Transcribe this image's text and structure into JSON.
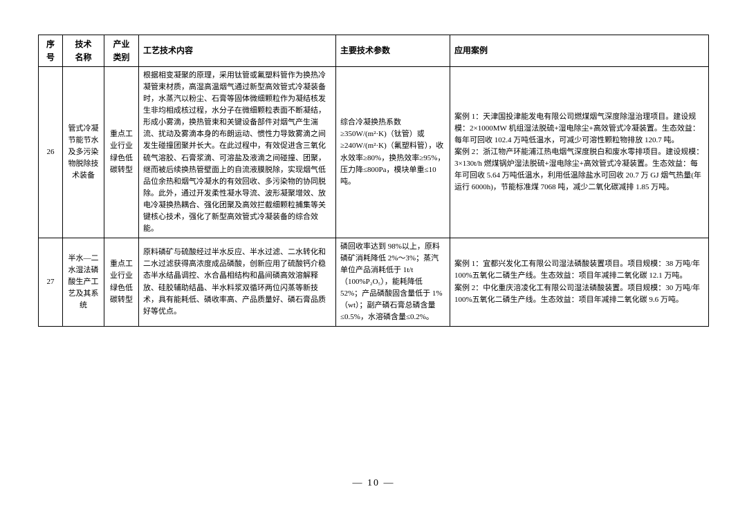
{
  "headers": {
    "num": "序号",
    "tech": "技术\n名称",
    "ind": "产业\n类别",
    "proc": "工艺技术内容",
    "param": "主要技术参数",
    "case": "应用案例"
  },
  "rows": [
    {
      "num": "26",
      "tech": "管式冷凝节能节水及多污染物脱除技术装备",
      "ind": "重点工业行业绿色低碳转型",
      "proc": "根据相变凝聚的原理，采用钛管或氟塑料管作为换热冷凝管束材质，高湿高温烟气通过新型高效管式冷凝装备时，水蒸汽以粉尘、石膏等固体微细颗粒作为凝结核发生非均相成核过程，水分子在微细颗粒表面不断凝结，形成小雾滴，换热管束和关键设备部件对烟气产生湍流、扰动及雾滴本身的布朗运动、惯性力导致雾滴之间发生碰撞团聚并长大。在此过程中，有效促进含三氧化硫气溶胶、石膏浆滴、可溶盐及液滴之间碰撞、团聚，继而被后续换热管壁面上的自流液膜脱除，实现烟气低品位余热和烟气冷凝水的有效回收、多污染物的协同脱除。此外，通过开发柔性凝水导流、波形凝聚增效、放电冷凝换热耦合、强化团聚及高效拦截细颗粒捕集等关键核心技术，强化了新型高效管式冷凝装备的综合效能。",
      "param": "综合冷凝换热系数≥350W/(m²·K)（钛管）或≥240W/(m²·K)（氟塑料管），收水效率≥80%，换热效率≥95%，压力降≤800Pa，模块单重≤10 吨。",
      "case": "案例 1：天津国投津能发电有限公司燃煤烟气深度除湿治理项目。建设规模：2×1000MW 机组湿法脱硫+湿电除尘+高效管式冷凝装置。生态效益：每年可回收 102.4 万吨低温水，可减少可溶性颗粒物排放 120.7 吨。\n案例 2：浙江物产环能浦江热电烟气深度脱白和废水零排项目。建设规模：3×130t/h 燃煤锅炉湿法脱硫+湿电除尘+高效管式冷凝装置。生态效益：每年可回收 5.64 万吨低温水，利用低温除盐水可回收 20.7 万 GJ 烟气热量(年运行 6000h)，节能标准煤 7068 吨，减少二氧化碳减排 1.85 万吨。"
    },
    {
      "num": "27",
      "tech": "半水—二水湿法磷酸生产工艺及其系统",
      "ind": "重点工业行业绿色低碳转型",
      "proc": "原料磷矿与硫酸经过半水反应、半水过滤、二水转化和二水过滤获得高浓度成品磷酸，创新应用了硫酸钙介稳态半水结晶调控、水合晶相结构和晶间磷高效溶解释放、硅胶辅助结晶、半水料浆双循环两位闪蒸等新技术，具有能耗低、磷收率高、产品质量好、磷石膏品质好等优点。",
      "param": "磷回收率达到 98%以上，原料磷矿消耗降低 2%～3%；蒸汽单位产品消耗低于 1t/t（100%P₂O₅），能耗降低 52%；产品磷酸固含量低于 1%（wt）；副产磷石膏总磷含量≤0.5%，水溶磷含量≤0.2%。",
      "case": "案例 1：宜都兴发化工有限公司湿法磷酸装置项目。项目规模：38 万吨/年 100%五氧化二磷生产线。生态效益：项目年减排二氧化碳 12.1 万吨。\n案例 2：中化重庆涪凌化工有限公司湿法磷酸装置。项目规模：30 万吨/年 100%五氧化二磷生产线。生态效益：项目年减排二氧化碳 9.6 万吨。"
    }
  ],
  "page_num": "— 10 —"
}
